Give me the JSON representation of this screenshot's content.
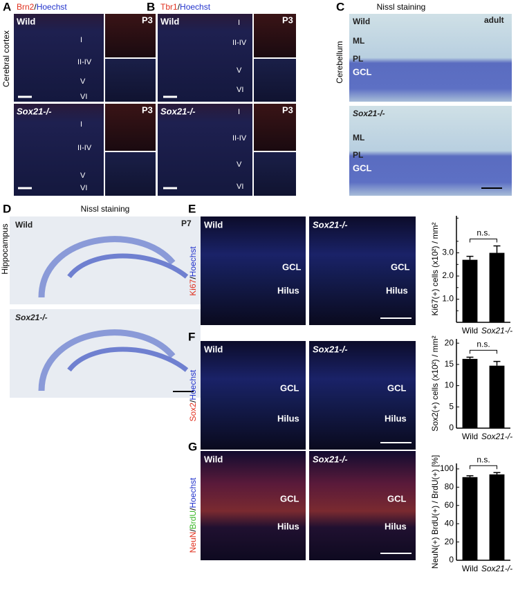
{
  "panels": {
    "A": {
      "letter": "A",
      "title_parts": [
        {
          "text": "Brn2",
          "color": "#e0301e"
        },
        {
          "text": "/",
          "color": "#000000"
        },
        {
          "text": "Hoechst",
          "color": "#2233cc"
        }
      ],
      "region": "Cerebral cortex",
      "wild": "Wild",
      "mutant": "Sox21-/-",
      "stage": "P3",
      "layers": [
        "I",
        "II-IV",
        "V",
        "VI"
      ]
    },
    "B": {
      "letter": "B",
      "title_parts": [
        {
          "text": "Tbr1",
          "color": "#e0301e"
        },
        {
          "text": "/",
          "color": "#000000"
        },
        {
          "text": "Hoechst",
          "color": "#2233cc"
        }
      ],
      "wild": "Wild",
      "mutant": "Sox21-/-",
      "stage": "P3",
      "layers": [
        "I",
        "II-IV",
        "V",
        "VI"
      ]
    },
    "C": {
      "letter": "C",
      "title": "Nissl staining",
      "region": "Cerebellum",
      "wild": "Wild",
      "mutant": "Sox21-/-",
      "stage": "adult",
      "layers": [
        "ML",
        "PL",
        "GCL"
      ]
    },
    "D": {
      "letter": "D",
      "title": "Nissl staining",
      "region": "Hippocampus",
      "wild": "Wild",
      "mutant": "Sox21-/-",
      "stage": "P7"
    },
    "E": {
      "letter": "E",
      "stain_parts": [
        {
          "text": "Ki67",
          "color": "#e0301e"
        },
        {
          "text": "/",
          "color": "#000000"
        },
        {
          "text": "Hoechst",
          "color": "#2233cc"
        }
      ],
      "wild": "Wild",
      "mutant": "Sox21-/-",
      "regions": [
        "GCL",
        "Hilus"
      ]
    },
    "F": {
      "letter": "F",
      "stain_parts": [
        {
          "text": "Sox2",
          "color": "#e0301e"
        },
        {
          "text": "/",
          "color": "#000000"
        },
        {
          "text": "Hoechst",
          "color": "#2233cc"
        }
      ],
      "wild": "Wild",
      "mutant": "Sox21-/-",
      "regions": [
        "GCL",
        "Hilus"
      ]
    },
    "G": {
      "letter": "G",
      "stain_parts": [
        {
          "text": "NeuN",
          "color": "#e0301e"
        },
        {
          "text": "/",
          "color": "#000000"
        },
        {
          "text": "BrdU",
          "color": "#3cb82a"
        },
        {
          "text": "/",
          "color": "#000000"
        },
        {
          "text": "Hoechst",
          "color": "#2233cc"
        }
      ],
      "wild": "Wild",
      "mutant": "Sox21-/-",
      "regions": [
        "GCL",
        "Hilus"
      ]
    }
  },
  "chart_data": [
    {
      "type": "bar",
      "ylabel": "Ki67(+) cells (x10²) / mm²",
      "categories": [
        "Wild",
        "Sox21-/-"
      ],
      "values": [
        2.7,
        3.0
      ],
      "errors": [
        0.15,
        0.3
      ],
      "color": "#000000",
      "ylim": [
        0,
        4.6
      ],
      "yticks": [
        {
          "value": 1,
          "label": "1.0"
        },
        {
          "value": 2,
          "label": "2.0"
        },
        {
          "value": 3,
          "label": "3.0"
        }
      ],
      "minor_yticks": [
        0.5,
        1.5,
        2.5,
        3.5,
        4.5
      ],
      "annotation": "n.s."
    },
    {
      "type": "bar",
      "ylabel": "Sox2(+) cells (x10²) / mm²",
      "categories": [
        "Wild",
        "Sox21-/-"
      ],
      "values": [
        16.3,
        14.7
      ],
      "errors": [
        0.4,
        1.0
      ],
      "color": "#000000",
      "ylim": [
        0,
        21
      ],
      "yticks": [
        0,
        5,
        10,
        15,
        20
      ],
      "annotation": "n.s."
    },
    {
      "type": "bar",
      "ylabel": "NeuN(+) BrdU(+) / BrdU(+) [%]",
      "categories": [
        "Wild",
        "Sox21-/-"
      ],
      "values": [
        91,
        94
      ],
      "errors": [
        1.5,
        2
      ],
      "color": "#000000",
      "ylim": [
        0,
        106
      ],
      "yticks": [
        0,
        20,
        40,
        60,
        80,
        100
      ],
      "annotation": "n.s."
    }
  ]
}
